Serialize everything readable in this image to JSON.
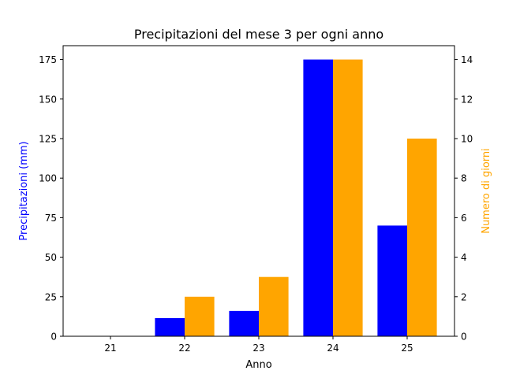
{
  "chart_data": {
    "type": "bar",
    "title": "Precipitazioni del mese 3 per ogni anno",
    "xlabel": "Anno",
    "categories": [
      "21",
      "22",
      "23",
      "24",
      "25"
    ],
    "series": [
      {
        "axis": "left",
        "values": [
          0,
          11.5,
          16,
          175,
          70
        ],
        "color": "#0000ff"
      },
      {
        "axis": "right",
        "values": [
          0,
          2,
          3,
          14,
          10
        ],
        "color": "#ffa500"
      }
    ],
    "y_left": {
      "label": "Precipitazioni (mm)",
      "label_color": "#0000ff",
      "ylim": [
        0,
        183.75
      ],
      "ticks": [
        0,
        25,
        50,
        75,
        100,
        125,
        150,
        175
      ]
    },
    "y_right": {
      "label": "Numero di giorni",
      "label_color": "#ffa500",
      "ylim": [
        0,
        14.7
      ],
      "ticks": [
        0,
        2,
        4,
        6,
        8,
        10,
        12,
        14
      ]
    },
    "grid": false,
    "legend": "none"
  }
}
